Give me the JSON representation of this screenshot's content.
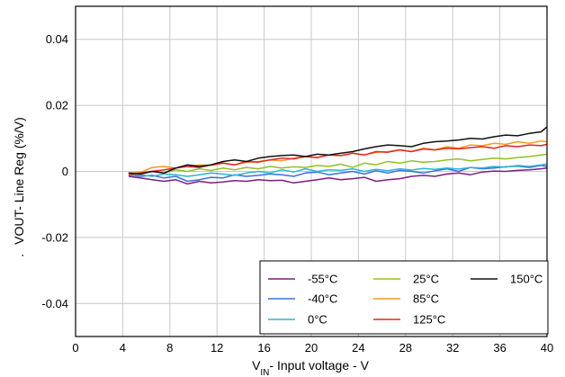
{
  "chart_data": {
    "type": "line",
    "title": "",
    "xlabel": {
      "main": "V",
      "sub": "IN",
      "rest": "- Input voltage - V"
    },
    "ylabel": "VOUT- Line Reg (%/V)",
    "ylabel_prefix": ".",
    "xlim": [
      0,
      40
    ],
    "ylim": [
      -0.05,
      0.05
    ],
    "xticks": [
      0,
      4,
      8,
      12,
      16,
      20,
      24,
      28,
      32,
      36,
      40
    ],
    "yticks": [
      -0.04,
      -0.02,
      0,
      0.02,
      0.04
    ],
    "ytick_labels": [
      "-0.04",
      "-0.02",
      "0",
      "0.02",
      "0.04"
    ],
    "grid": true,
    "legend_position": "bottom-right",
    "x": [
      4.5,
      5.5,
      6.5,
      7.5,
      8.5,
      9.5,
      10.5,
      11.5,
      12.5,
      13.5,
      14.5,
      15.5,
      16.5,
      17.5,
      18.5,
      19.5,
      20.5,
      21.5,
      22.5,
      23.5,
      24.5,
      25.5,
      26.5,
      27.5,
      28.5,
      29.5,
      30.5,
      31.5,
      32.5,
      33.5,
      34.5,
      35.5,
      36.5,
      37.5,
      38.5,
      39.5,
      40
    ],
    "series": [
      {
        "name": "-55°C",
        "color": "#7b1f7f",
        "values": [
          -0.0015,
          -0.002,
          -0.0025,
          -0.003,
          -0.0025,
          -0.0038,
          -0.003,
          -0.0035,
          -0.0032,
          -0.0028,
          -0.003,
          -0.0025,
          -0.0028,
          -0.0027,
          -0.0035,
          -0.003,
          -0.0025,
          -0.002,
          -0.0025,
          -0.0022,
          -0.0018,
          -0.003,
          -0.0025,
          -0.0022,
          -0.0015,
          -0.0012,
          -0.0015,
          -0.0008,
          -0.0005,
          -0.001,
          -0.0002,
          0.0001,
          0.0,
          0.0003,
          0.0005,
          0.0008,
          0.001
        ]
      },
      {
        "name": "-40°C",
        "color": "#3a6fe0",
        "values": [
          -0.001,
          -0.0015,
          -0.0012,
          -0.002,
          -0.0015,
          -0.003,
          -0.0025,
          -0.0018,
          -0.002,
          -0.001,
          -0.0015,
          -0.0012,
          -0.0008,
          -0.001,
          -0.0015,
          -0.0005,
          -0.0002,
          -0.001,
          -0.0005,
          0.0,
          -0.0008,
          0.0002,
          -0.0005,
          0.0003,
          0.0,
          -0.0005,
          0.0002,
          0.0008,
          0.0,
          0.0012,
          0.0008,
          0.001,
          0.0014,
          0.0016,
          0.0012,
          0.0018,
          0.0015
        ]
      },
      {
        "name": "0°C",
        "color": "#2db5cf",
        "values": [
          -0.0012,
          -0.001,
          -0.0015,
          -0.0008,
          -0.001,
          -0.0015,
          -0.001,
          -0.0005,
          -0.0008,
          -0.0012,
          -0.0005,
          0.0,
          -0.0005,
          0.0005,
          -0.0002,
          0.0008,
          0.0,
          0.0005,
          0.0003,
          0.0008,
          0.0,
          0.0006,
          0.0002,
          0.0008,
          0.0004,
          0.0009,
          0.0006,
          0.001,
          0.0007,
          0.0012,
          0.001,
          0.0015,
          0.0013,
          0.0018,
          0.0015,
          0.002,
          0.0022
        ]
      },
      {
        "name": "25°C",
        "color": "#8fc31f",
        "values": [
          -0.0005,
          -0.0008,
          0.0,
          -0.0005,
          0.0005,
          0.0,
          0.0008,
          0.0003,
          0.001,
          0.0005,
          0.0012,
          0.0008,
          0.0015,
          0.001,
          0.0014,
          0.0012,
          0.0018,
          0.0015,
          0.0022,
          0.0012,
          0.0025,
          0.002,
          0.003,
          0.0025,
          0.0032,
          0.0028,
          0.003,
          0.0035,
          0.0038,
          0.0032,
          0.0036,
          0.004,
          0.0038,
          0.0042,
          0.0045,
          0.005,
          0.0052
        ]
      },
      {
        "name": "85°C",
        "color": "#f39c1f",
        "values": [
          -0.0005,
          -0.0003,
          0.0012,
          0.0015,
          0.001,
          0.0015,
          0.002,
          0.0018,
          0.0025,
          0.002,
          0.0028,
          0.003,
          0.0035,
          0.0032,
          0.004,
          0.0045,
          0.0042,
          0.005,
          0.0048,
          0.0055,
          0.005,
          0.0058,
          0.006,
          0.0065,
          0.006,
          0.007,
          0.0065,
          0.0075,
          0.007,
          0.008,
          0.0078,
          0.0085,
          0.0082,
          0.009,
          0.0085,
          0.0092,
          0.009
        ]
      },
      {
        "name": "125°C",
        "color": "#e8231b",
        "values": [
          -0.001,
          -0.0005,
          0.0,
          0.0005,
          0.001,
          0.0015,
          0.0012,
          0.002,
          0.0025,
          0.002,
          0.003,
          0.0028,
          0.0035,
          0.004,
          0.0038,
          0.0045,
          0.0042,
          0.005,
          0.0048,
          0.0055,
          0.005,
          0.006,
          0.0058,
          0.0065,
          0.006,
          0.0068,
          0.0065,
          0.007,
          0.0068,
          0.0072,
          0.0075,
          0.007,
          0.0078,
          0.0075,
          0.008,
          0.0078,
          0.0082
        ]
      },
      {
        "name": "150°C",
        "color": "#111111",
        "values": [
          -0.0005,
          -0.0008,
          0.0,
          -0.0005,
          0.001,
          0.002,
          0.0015,
          0.002,
          0.003,
          0.0035,
          0.003,
          0.004,
          0.0045,
          0.0048,
          0.005,
          0.0045,
          0.0052,
          0.005,
          0.0055,
          0.006,
          0.0068,
          0.0075,
          0.008,
          0.0078,
          0.0075,
          0.0085,
          0.009,
          0.0092,
          0.0095,
          0.01,
          0.0098,
          0.0105,
          0.011,
          0.0108,
          0.0115,
          0.012,
          0.0135
        ]
      }
    ]
  }
}
